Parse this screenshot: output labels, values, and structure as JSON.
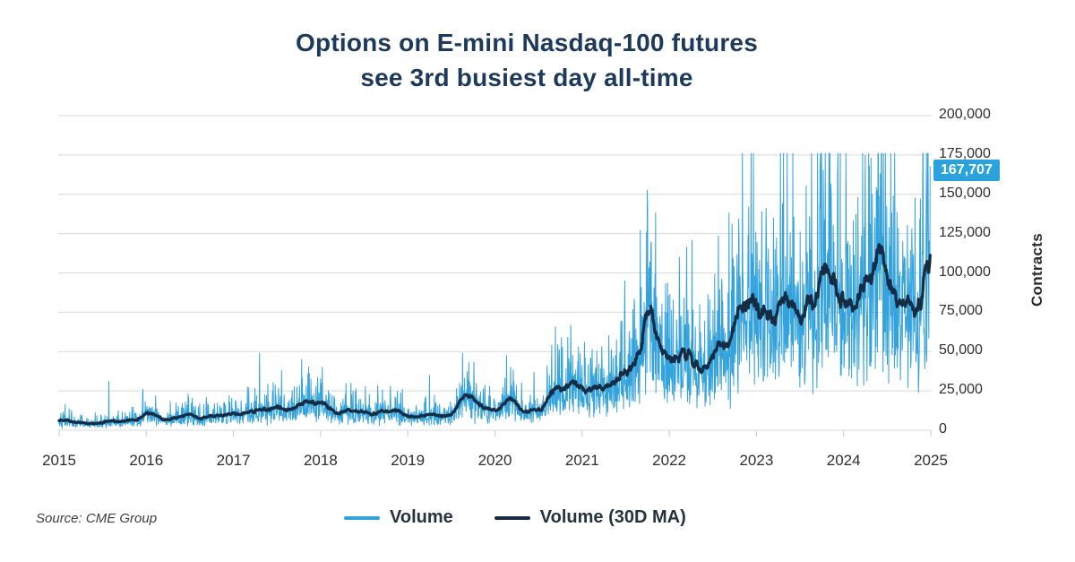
{
  "title": {
    "line1": "Options on E-mini Nasdaq-100 futures",
    "line2": "see 3rd busiest day all-time"
  },
  "source": "Source: CME Group",
  "colors": {
    "title": "#1d3a5c",
    "volume": "#34a3dc",
    "ma": "#142c44",
    "gridline": "#d9d9d9",
    "tick": "#c9c9c9",
    "callout_bg": "#2aa2db",
    "callout_text": "#ffffff"
  },
  "chart_data": {
    "type": "line",
    "title": "Options on E-mini Nasdaq-100 futures see 3rd busiest day all-time",
    "xlabel": "",
    "ylabel": "Contracts",
    "xlim": [
      2015,
      2025
    ],
    "ylim": [
      0,
      200000
    ],
    "grid": "horizontal",
    "x_ticks": [
      {
        "value": 2015,
        "label": "2015"
      },
      {
        "value": 2016,
        "label": "2016"
      },
      {
        "value": 2017,
        "label": "2017"
      },
      {
        "value": 2018,
        "label": "2018"
      },
      {
        "value": 2019,
        "label": "2019"
      },
      {
        "value": 2020,
        "label": "2020"
      },
      {
        "value": 2021,
        "label": "2021"
      },
      {
        "value": 2022,
        "label": "2022"
      },
      {
        "value": 2023,
        "label": "2023"
      },
      {
        "value": 2024,
        "label": "2024"
      },
      {
        "value": 2025,
        "label": "2025"
      }
    ],
    "y_ticks": [
      {
        "value": 0,
        "label": "0"
      },
      {
        "value": 25000,
        "label": "25,000"
      },
      {
        "value": 50000,
        "label": "50,000"
      },
      {
        "value": 75000,
        "label": "75,000"
      },
      {
        "value": 100000,
        "label": "100,000"
      },
      {
        "value": 125000,
        "label": "125,000"
      },
      {
        "value": 150000,
        "label": "150,000"
      },
      {
        "value": 175000,
        "label": "175,000"
      },
      {
        "value": 200000,
        "label": "200,000"
      }
    ],
    "annotation": {
      "label": "167,707",
      "value": 167707,
      "color": "#2aa2db",
      "text_color": "#ffffff"
    },
    "legend": {
      "position": "bottom",
      "entries": [
        {
          "name": "Volume",
          "color": "#34a3dc"
        },
        {
          "name": "Volume (30D MA)",
          "color": "#142c44"
        }
      ]
    },
    "series": [
      {
        "name": "Volume",
        "kind": "daily_volume",
        "color": "#34a3dc",
        "stroke_width": 1,
        "render": {
          "seed": 42,
          "sigma": 0.45,
          "points_per_year": 261,
          "min_factor": 0.12,
          "max_factor": 2.6,
          "max_value": 176000
        },
        "base_anchors": [
          [
            2015.0,
            7000
          ],
          [
            2015.15,
            5500
          ],
          [
            2015.35,
            4200
          ],
          [
            2015.55,
            4500
          ],
          [
            2015.75,
            5500
          ],
          [
            2015.9,
            7500
          ],
          [
            2016.05,
            11200
          ],
          [
            2016.2,
            8200
          ],
          [
            2016.4,
            8500
          ],
          [
            2016.6,
            7500
          ],
          [
            2016.8,
            9500
          ],
          [
            2017.0,
            9700
          ],
          [
            2017.2,
            11200
          ],
          [
            2017.35,
            14000
          ],
          [
            2017.5,
            11400
          ],
          [
            2017.65,
            12500
          ],
          [
            2017.8,
            15800
          ],
          [
            2017.9,
            15200
          ],
          [
            2018.0,
            16300
          ],
          [
            2018.15,
            12600
          ],
          [
            2018.3,
            11400
          ],
          [
            2018.45,
            11800
          ],
          [
            2018.6,
            10600
          ],
          [
            2018.75,
            11500
          ],
          [
            2018.9,
            11000
          ],
          [
            2019.05,
            9200
          ],
          [
            2019.2,
            8800
          ],
          [
            2019.35,
            9000
          ],
          [
            2019.5,
            10500
          ],
          [
            2019.62,
            18000
          ],
          [
            2019.72,
            24000
          ],
          [
            2019.82,
            14500
          ],
          [
            2019.93,
            11500
          ],
          [
            2020.05,
            14000
          ],
          [
            2020.18,
            20500
          ],
          [
            2020.3,
            14500
          ],
          [
            2020.42,
            11500
          ],
          [
            2020.55,
            15500
          ],
          [
            2020.68,
            25000
          ],
          [
            2020.78,
            27000
          ],
          [
            2020.88,
            25500
          ],
          [
            2020.98,
            27500
          ],
          [
            2021.1,
            27000
          ],
          [
            2021.22,
            28500
          ],
          [
            2021.35,
            30500
          ],
          [
            2021.45,
            33500
          ],
          [
            2021.55,
            41000
          ],
          [
            2021.65,
            54000
          ],
          [
            2021.75,
            63000
          ],
          [
            2021.82,
            66000
          ],
          [
            2021.9,
            55000
          ],
          [
            2021.98,
            42000
          ],
          [
            2022.06,
            47000
          ],
          [
            2022.14,
            52000
          ],
          [
            2022.22,
            49000
          ],
          [
            2022.3,
            46000
          ],
          [
            2022.38,
            41000
          ],
          [
            2022.46,
            44000
          ],
          [
            2022.54,
            46500
          ],
          [
            2022.62,
            50000
          ],
          [
            2022.7,
            58000
          ],
          [
            2022.78,
            76000
          ],
          [
            2022.88,
            79000
          ],
          [
            2022.98,
            76000
          ],
          [
            2023.08,
            79000
          ],
          [
            2023.18,
            75500
          ],
          [
            2023.3,
            79000
          ],
          [
            2023.42,
            75000
          ],
          [
            2023.55,
            70000
          ],
          [
            2023.65,
            78000
          ],
          [
            2023.8,
            98000
          ],
          [
            2023.9,
            87000
          ],
          [
            2024.0,
            79500
          ],
          [
            2024.1,
            81000
          ],
          [
            2024.25,
            92000
          ],
          [
            2024.4,
            110000
          ],
          [
            2024.5,
            102000
          ],
          [
            2024.6,
            84000
          ],
          [
            2024.7,
            76000
          ],
          [
            2024.8,
            77000
          ],
          [
            2024.9,
            89000
          ],
          [
            2024.99,
            103000
          ]
        ],
        "spikes": [
          [
            2015.57,
            31000
          ],
          [
            2015.96,
            26000
          ],
          [
            2016.48,
            23000
          ],
          [
            2016.95,
            22000
          ],
          [
            2017.3,
            49000
          ],
          [
            2017.55,
            38000
          ],
          [
            2017.78,
            45000
          ],
          [
            2018.02,
            40000
          ],
          [
            2018.35,
            30000
          ],
          [
            2018.8,
            28000
          ],
          [
            2019.25,
            35000
          ],
          [
            2019.63,
            49000
          ],
          [
            2019.7,
            43000
          ],
          [
            2020.18,
            40000
          ],
          [
            2020.45,
            37000
          ],
          [
            2020.74,
            51000
          ],
          [
            2020.95,
            44000
          ],
          [
            2021.1,
            46000
          ],
          [
            2021.49,
            95000
          ],
          [
            2021.6,
            80000
          ],
          [
            2021.74,
            126000
          ],
          [
            2021.79,
            118000
          ],
          [
            2021.95,
            75000
          ],
          [
            2022.12,
            85000
          ],
          [
            2022.35,
            80000
          ],
          [
            2022.6,
            96000
          ],
          [
            2022.72,
            131000
          ],
          [
            2022.8,
            120000
          ],
          [
            2022.95,
            112000
          ],
          [
            2023.06,
            139000
          ],
          [
            2023.3,
            144000
          ],
          [
            2023.5,
            126000
          ],
          [
            2023.62,
            115000
          ],
          [
            2023.79,
            176000
          ],
          [
            2023.86,
            149000
          ],
          [
            2024.05,
            120000
          ],
          [
            2024.25,
            175000
          ],
          [
            2024.33,
            150000
          ],
          [
            2024.42,
            163000
          ],
          [
            2024.55,
            138000
          ],
          [
            2024.68,
            120000
          ],
          [
            2024.78,
            128000
          ],
          [
            2024.88,
            147000
          ],
          [
            2024.96,
            152000
          ]
        ],
        "last_point": {
          "t": 2024.996,
          "value": 167707
        }
      },
      {
        "name": "Volume (30D MA)",
        "kind": "rolling_mean",
        "window": 30,
        "color": "#142c44",
        "stroke_width": 3.2
      }
    ]
  }
}
